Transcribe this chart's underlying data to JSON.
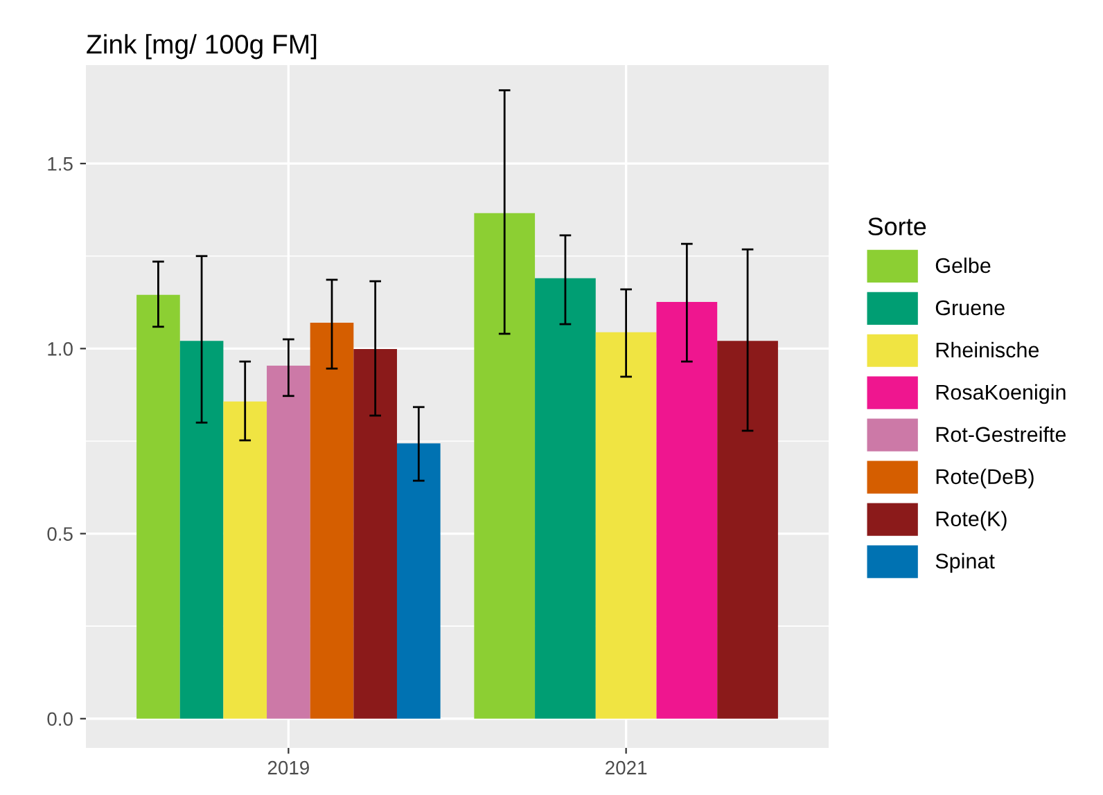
{
  "chart_data": {
    "type": "bar",
    "title": "Zink [mg/ 100g FM]",
    "legend_title": "Sorte",
    "categories": [
      "2019",
      "2021"
    ],
    "series": [
      {
        "name": "Gelbe",
        "color": "#8ccf33",
        "values": [
          1.145,
          1.366
        ],
        "errors": [
          [
            1.059,
            1.235
          ],
          [
            1.04,
            1.698
          ]
        ]
      },
      {
        "name": "Gruene",
        "color": "#009e73",
        "values": [
          1.021,
          1.19
        ],
        "errors": [
          [
            0.8,
            1.25
          ],
          [
            1.066,
            1.306
          ]
        ]
      },
      {
        "name": "Rheinische",
        "color": "#f0e442",
        "values": [
          0.857,
          1.044
        ],
        "errors": [
          [
            0.752,
            0.965
          ],
          [
            0.924,
            1.16
          ]
        ]
      },
      {
        "name": "RosaKoenigin",
        "color": "#ef168f",
        "values": [
          null,
          1.126
        ],
        "errors": [
          null,
          [
            0.965,
            1.283
          ]
        ]
      },
      {
        "name": "Rot-Gestreifte",
        "color": "#cc79a7",
        "values": [
          0.954,
          null
        ],
        "errors": [
          [
            0.872,
            1.025
          ],
          null
        ]
      },
      {
        "name": "Rote(DeB)",
        "color": "#d55e00",
        "values": [
          1.07,
          null
        ],
        "errors": [
          [
            0.946,
            1.186
          ],
          null
        ]
      },
      {
        "name": "Rote(K)",
        "color": "#8b1a1a",
        "values": [
          0.999,
          1.021
        ],
        "errors": [
          [
            0.819,
            1.182
          ],
          [
            0.778,
            1.268
          ]
        ]
      },
      {
        "name": "Spinat",
        "color": "#0072b2",
        "values": [
          0.744,
          null
        ],
        "errors": [
          [
            0.643,
            0.842
          ],
          null
        ]
      }
    ],
    "ylim": [
      -0.079,
      1.766
    ],
    "yticks": [
      {
        "value": 0,
        "label": "0.0"
      },
      {
        "value": 0.5,
        "label": "0.5"
      },
      {
        "value": 1,
        "label": "1.0"
      },
      {
        "value": 1.5,
        "label": "1.5"
      }
    ],
    "grid": true,
    "legend": "right"
  }
}
